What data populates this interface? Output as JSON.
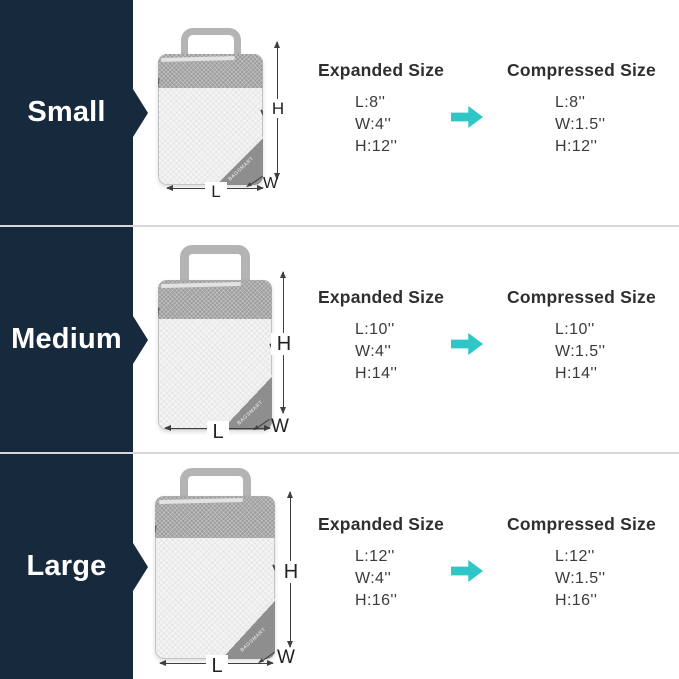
{
  "colors": {
    "panel_navy": "#17293C",
    "arrow_teal": "#2FC6C8",
    "divider_gray": "#D7D7D7"
  },
  "sections": [
    {
      "size_label": "Small",
      "bag": {
        "logo": "BAGSMART",
        "h_label": "H",
        "l_label": "L",
        "w_label": "W"
      },
      "expanded": {
        "title": "Expanded Size",
        "lines": [
          "L:8''",
          "W:4''",
          "H:12''"
        ]
      },
      "compressed": {
        "title": "Compressed Size",
        "lines": [
          "L:8''",
          "W:1.5''",
          "H:12''"
        ]
      }
    },
    {
      "size_label": "Medium",
      "bag": {
        "logo": "BAGSMART",
        "h_label": "H",
        "l_label": "L",
        "w_label": "W"
      },
      "expanded": {
        "title": "Expanded Size",
        "lines": [
          "L:10''",
          "W:4''",
          "H:14''"
        ]
      },
      "compressed": {
        "title": "Compressed Size",
        "lines": [
          "L:10''",
          "W:1.5''",
          "H:14''"
        ]
      }
    },
    {
      "size_label": "Large",
      "bag": {
        "logo": "BAGSMART",
        "h_label": "H",
        "l_label": "L",
        "w_label": "W"
      },
      "expanded": {
        "title": "Expanded Size",
        "lines": [
          "L:12''",
          "W:4''",
          "H:16''"
        ]
      },
      "compressed": {
        "title": "Compressed Size",
        "lines": [
          "L:12''",
          "W:1.5''",
          "H:16''"
        ]
      }
    }
  ]
}
